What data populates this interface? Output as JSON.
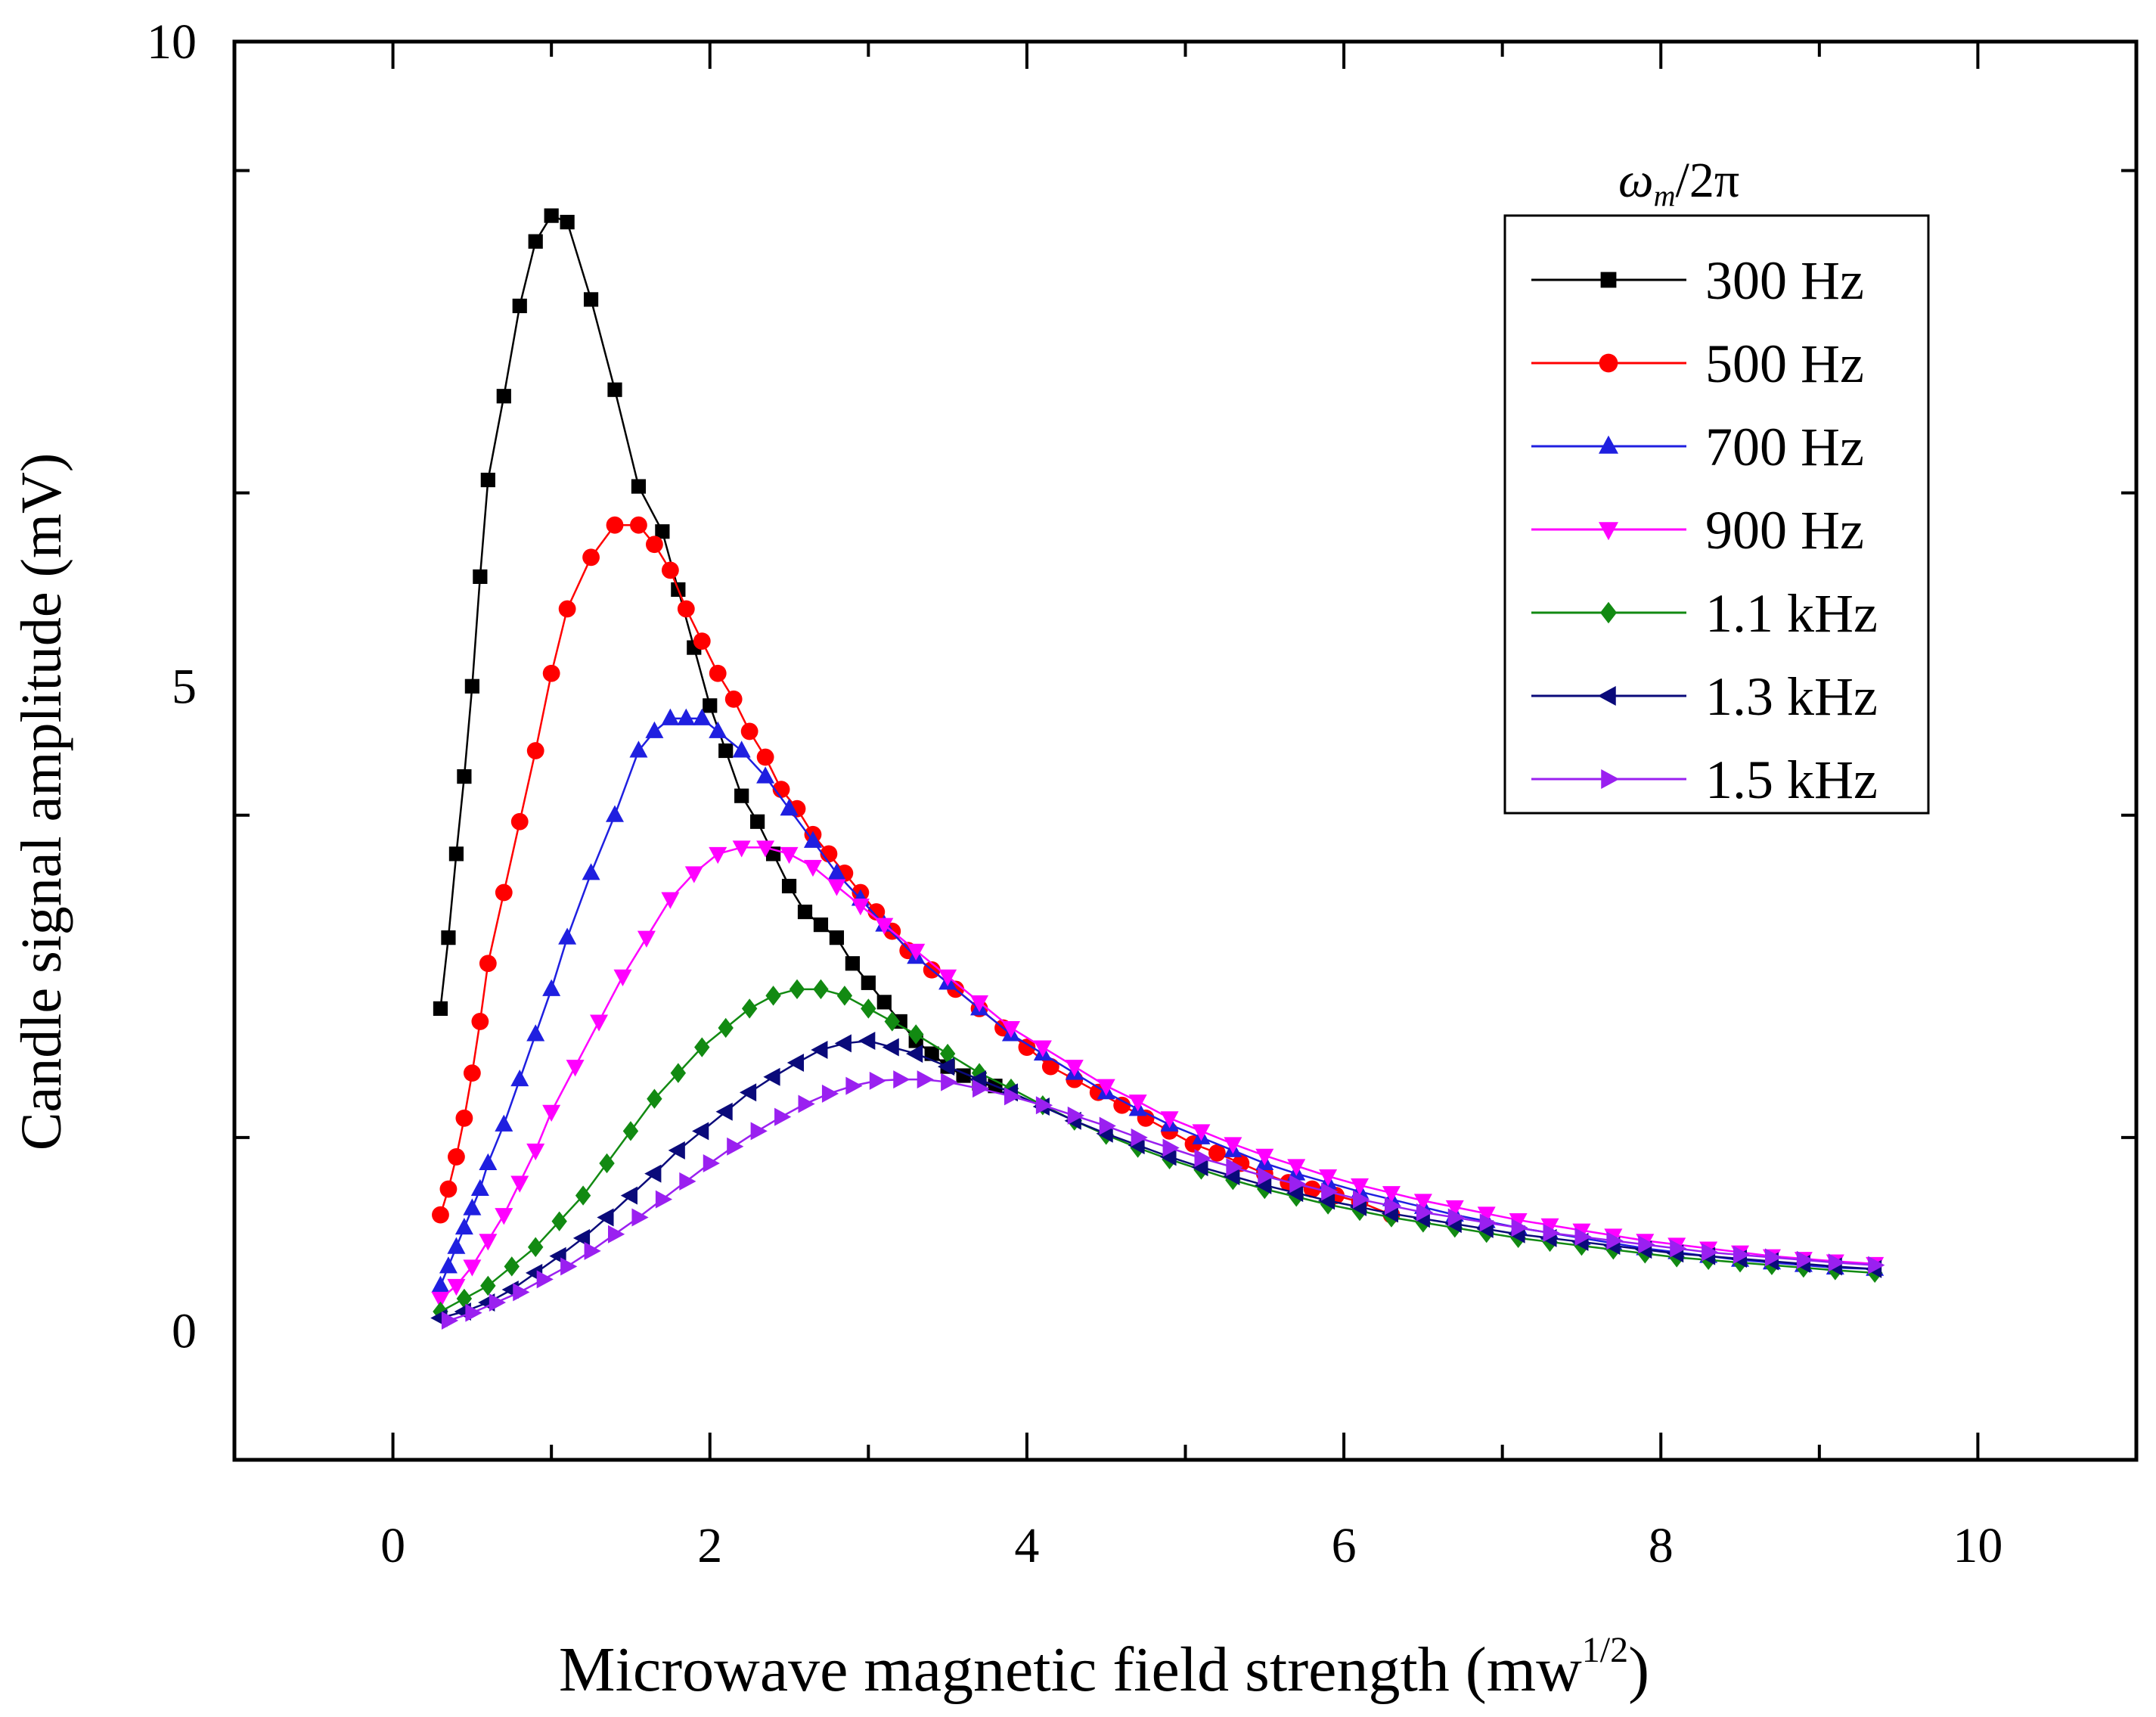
{
  "chart_data": {
    "type": "line",
    "title": "",
    "xlabel": "Microwave magnetic field strength (mw",
    "xlabel_sup": "1/2",
    "xlabel_close": ")",
    "ylabel": "Candle signal amplitude (mV)",
    "xlim": [
      -1,
      11
    ],
    "ylim": [
      -1,
      10
    ],
    "xticks": [
      0,
      2,
      4,
      6,
      8,
      10
    ],
    "yticks": [
      0,
      5,
      10
    ],
    "xtick_labels": [
      "0",
      "2",
      "4",
      "6",
      "8",
      "10"
    ],
    "ytick_labels": [
      "0",
      "5",
      "10"
    ],
    "grid": false,
    "legend": {
      "title_main": "ω",
      "title_sub": "m",
      "title_rest": "/2π",
      "position": "top-right"
    },
    "series": [
      {
        "name": "300 Hz",
        "color": "#000000",
        "marker": "square",
        "x": [
          0.3,
          0.35,
          0.4,
          0.45,
          0.5,
          0.55,
          0.6,
          0.7,
          0.8,
          0.9,
          1.0,
          1.1,
          1.25,
          1.4,
          1.55,
          1.7,
          1.8,
          1.9,
          2.0,
          2.1,
          2.2,
          2.3,
          2.4,
          2.5,
          2.6,
          2.7,
          2.8,
          2.9,
          3.0,
          3.1,
          3.2,
          3.3,
          3.4,
          3.5,
          3.6,
          3.7,
          3.8
        ],
        "y": [
          2.5,
          3.05,
          3.7,
          4.3,
          5.0,
          5.85,
          6.6,
          7.25,
          7.95,
          8.45,
          8.65,
          8.6,
          8.0,
          7.3,
          6.55,
          6.2,
          5.75,
          5.3,
          4.85,
          4.5,
          4.15,
          3.95,
          3.7,
          3.45,
          3.25,
          3.15,
          3.05,
          2.85,
          2.7,
          2.55,
          2.4,
          2.25,
          2.15,
          2.05,
          1.98,
          1.92,
          1.9
        ]
      },
      {
        "name": "500 Hz",
        "color": "#ff0000",
        "marker": "circle",
        "x": [
          0.3,
          0.35,
          0.4,
          0.45,
          0.5,
          0.55,
          0.6,
          0.7,
          0.8,
          0.9,
          1.0,
          1.1,
          1.25,
          1.4,
          1.55,
          1.65,
          1.75,
          1.85,
          1.95,
          2.05,
          2.15,
          2.25,
          2.35,
          2.45,
          2.55,
          2.65,
          2.75,
          2.85,
          2.95,
          3.05,
          3.15,
          3.25,
          3.4,
          3.55,
          3.7,
          3.85,
          4.0,
          4.15,
          4.3,
          4.45,
          4.6,
          4.75,
          4.9,
          5.05,
          5.2,
          5.35,
          5.5,
          5.65,
          5.8,
          5.95,
          6.1,
          6.3
        ],
        "y": [
          0.9,
          1.1,
          1.35,
          1.65,
          2.0,
          2.4,
          2.85,
          3.4,
          3.95,
          4.5,
          5.1,
          5.6,
          6.0,
          6.25,
          6.25,
          6.1,
          5.9,
          5.6,
          5.35,
          5.1,
          4.9,
          4.65,
          4.45,
          4.2,
          4.05,
          3.85,
          3.7,
          3.55,
          3.4,
          3.25,
          3.1,
          2.95,
          2.8,
          2.65,
          2.5,
          2.35,
          2.2,
          2.05,
          1.95,
          1.85,
          1.75,
          1.65,
          1.55,
          1.45,
          1.38,
          1.3,
          1.22,
          1.15,
          1.1,
          1.05,
          1.0,
          0.9
        ]
      },
      {
        "name": "700 Hz",
        "color": "#1f1fe0",
        "marker": "triangle-up",
        "x": [
          0.3,
          0.35,
          0.4,
          0.45,
          0.5,
          0.55,
          0.6,
          0.7,
          0.8,
          0.9,
          1.0,
          1.1,
          1.25,
          1.4,
          1.55,
          1.65,
          1.75,
          1.85,
          1.95,
          2.05,
          2.2,
          2.35,
          2.5,
          2.65,
          2.8,
          2.95,
          3.1,
          3.3,
          3.5,
          3.7,
          3.9,
          4.1,
          4.3,
          4.5,
          4.7,
          4.9,
          5.1,
          5.3,
          5.5,
          5.7,
          5.9,
          6.1,
          6.3,
          6.5,
          6.7,
          6.9,
          7.1,
          7.3,
          7.5,
          7.7,
          7.9,
          8.1,
          8.3,
          8.5,
          8.7,
          8.9,
          9.1,
          9.35
        ],
        "y": [
          0.35,
          0.5,
          0.65,
          0.8,
          0.95,
          1.1,
          1.3,
          1.6,
          1.95,
          2.3,
          2.65,
          3.05,
          3.55,
          4.0,
          4.5,
          4.65,
          4.75,
          4.75,
          4.75,
          4.65,
          4.5,
          4.3,
          4.05,
          3.8,
          3.55,
          3.35,
          3.15,
          2.9,
          2.7,
          2.5,
          2.3,
          2.15,
          2.0,
          1.85,
          1.72,
          1.6,
          1.5,
          1.4,
          1.3,
          1.22,
          1.15,
          1.08,
          1.02,
          0.96,
          0.9,
          0.85,
          0.8,
          0.76,
          0.72,
          0.68,
          0.64,
          0.61,
          0.58,
          0.55,
          0.53,
          0.51,
          0.49,
          0.48
        ]
      },
      {
        "name": "900 Hz",
        "color": "#ff00ff",
        "marker": "triangle-down",
        "x": [
          0.3,
          0.4,
          0.5,
          0.6,
          0.7,
          0.8,
          0.9,
          1.0,
          1.15,
          1.3,
          1.45,
          1.6,
          1.75,
          1.9,
          2.05,
          2.2,
          2.35,
          2.5,
          2.65,
          2.8,
          2.95,
          3.1,
          3.3,
          3.5,
          3.7,
          3.9,
          4.1,
          4.3,
          4.5,
          4.7,
          4.9,
          5.1,
          5.3,
          5.5,
          5.7,
          5.9,
          6.1,
          6.3,
          6.5,
          6.7,
          6.9,
          7.1,
          7.3,
          7.5,
          7.7,
          7.9,
          8.1,
          8.3,
          8.5,
          8.7,
          8.9,
          9.1,
          9.35
        ],
        "y": [
          0.25,
          0.35,
          0.5,
          0.7,
          0.9,
          1.15,
          1.4,
          1.7,
          2.05,
          2.4,
          2.75,
          3.05,
          3.35,
          3.55,
          3.7,
          3.75,
          3.75,
          3.7,
          3.6,
          3.45,
          3.3,
          3.15,
          2.95,
          2.75,
          2.55,
          2.35,
          2.2,
          2.05,
          1.9,
          1.78,
          1.65,
          1.55,
          1.45,
          1.36,
          1.28,
          1.2,
          1.13,
          1.07,
          1.01,
          0.96,
          0.91,
          0.86,
          0.82,
          0.78,
          0.74,
          0.7,
          0.67,
          0.64,
          0.61,
          0.58,
          0.56,
          0.54,
          0.52
        ]
      },
      {
        "name": "1.1 kHz",
        "color": "#128a12",
        "marker": "diamond",
        "x": [
          0.3,
          0.45,
          0.6,
          0.75,
          0.9,
          1.05,
          1.2,
          1.35,
          1.5,
          1.65,
          1.8,
          1.95,
          2.1,
          2.25,
          2.4,
          2.55,
          2.7,
          2.85,
          3.0,
          3.15,
          3.3,
          3.5,
          3.7,
          3.9,
          4.1,
          4.3,
          4.5,
          4.7,
          4.9,
          5.1,
          5.3,
          5.5,
          5.7,
          5.9,
          6.1,
          6.3,
          6.5,
          6.7,
          6.9,
          7.1,
          7.3,
          7.5,
          7.7,
          7.9,
          8.1,
          8.3,
          8.5,
          8.7,
          8.9,
          9.1,
          9.35
        ],
        "y": [
          0.15,
          0.25,
          0.35,
          0.5,
          0.65,
          0.85,
          1.05,
          1.3,
          1.55,
          1.8,
          2.0,
          2.2,
          2.35,
          2.5,
          2.6,
          2.65,
          2.65,
          2.6,
          2.5,
          2.4,
          2.3,
          2.15,
          2.0,
          1.88,
          1.75,
          1.63,
          1.52,
          1.42,
          1.33,
          1.25,
          1.17,
          1.1,
          1.04,
          0.98,
          0.93,
          0.88,
          0.84,
          0.8,
          0.76,
          0.72,
          0.69,
          0.66,
          0.63,
          0.6,
          0.57,
          0.55,
          0.53,
          0.51,
          0.49,
          0.47,
          0.45
        ]
      },
      {
        "name": "1.3 kHz",
        "color": "#0a0a7a",
        "marker": "triangle-left",
        "x": [
          0.3,
          0.45,
          0.6,
          0.75,
          0.9,
          1.05,
          1.2,
          1.35,
          1.5,
          1.65,
          1.8,
          1.95,
          2.1,
          2.25,
          2.4,
          2.55,
          2.7,
          2.85,
          3.0,
          3.15,
          3.3,
          3.5,
          3.7,
          3.9,
          4.1,
          4.3,
          4.5,
          4.7,
          4.9,
          5.1,
          5.3,
          5.5,
          5.7,
          5.9,
          6.1,
          6.3,
          6.5,
          6.7,
          6.9,
          7.1,
          7.3,
          7.5,
          7.7,
          7.9,
          8.1,
          8.3,
          8.5,
          8.7,
          8.9,
          9.1,
          9.35
        ],
        "y": [
          0.1,
          0.15,
          0.22,
          0.32,
          0.45,
          0.58,
          0.72,
          0.88,
          1.05,
          1.22,
          1.4,
          1.55,
          1.7,
          1.85,
          1.97,
          2.08,
          2.18,
          2.23,
          2.25,
          2.2,
          2.15,
          2.05,
          1.95,
          1.85,
          1.74,
          1.63,
          1.53,
          1.44,
          1.35,
          1.27,
          1.2,
          1.13,
          1.07,
          1.01,
          0.96,
          0.91,
          0.87,
          0.83,
          0.79,
          0.75,
          0.72,
          0.69,
          0.66,
          0.63,
          0.6,
          0.58,
          0.56,
          0.54,
          0.52,
          0.5,
          0.48
        ]
      },
      {
        "name": "1.5 kHz",
        "color": "#9a20f0",
        "marker": "triangle-right",
        "x": [
          0.35,
          0.5,
          0.65,
          0.8,
          0.95,
          1.1,
          1.25,
          1.4,
          1.55,
          1.7,
          1.85,
          2.0,
          2.15,
          2.3,
          2.45,
          2.6,
          2.75,
          2.9,
          3.05,
          3.2,
          3.35,
          3.5,
          3.7,
          3.9,
          4.1,
          4.3,
          4.5,
          4.7,
          4.9,
          5.1,
          5.3,
          5.5,
          5.7,
          5.9,
          6.1,
          6.3,
          6.5,
          6.7,
          6.9,
          7.1,
          7.3,
          7.5,
          7.7,
          7.9,
          8.1,
          8.3,
          8.5,
          8.7,
          8.9,
          9.1,
          9.35
        ],
        "y": [
          0.08,
          0.14,
          0.22,
          0.3,
          0.4,
          0.5,
          0.62,
          0.75,
          0.88,
          1.02,
          1.16,
          1.3,
          1.43,
          1.55,
          1.66,
          1.76,
          1.84,
          1.9,
          1.94,
          1.95,
          1.95,
          1.93,
          1.88,
          1.82,
          1.75,
          1.67,
          1.59,
          1.5,
          1.42,
          1.34,
          1.27,
          1.2,
          1.14,
          1.08,
          1.02,
          0.97,
          0.92,
          0.88,
          0.84,
          0.8,
          0.76,
          0.73,
          0.7,
          0.67,
          0.64,
          0.61,
          0.59,
          0.57,
          0.55,
          0.53,
          0.51
        ]
      }
    ]
  }
}
